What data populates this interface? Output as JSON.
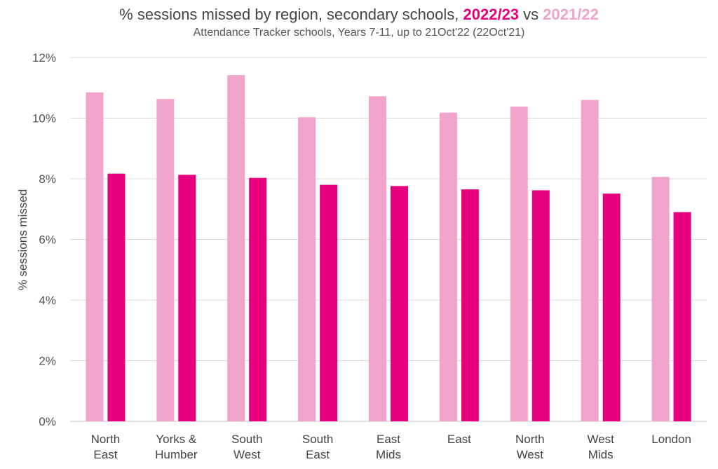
{
  "chart_data": {
    "type": "bar",
    "title_prefix": "% sessions missed by region, secondary schools,",
    "title_series_new": "2022/23",
    "title_vs": "vs",
    "title_series_old": "2021/22",
    "subtitle": "Attendance Tracker schools, Years 7-11, up to 21Oct'22 (22Oct'21)",
    "xlabel": "",
    "ylabel": "% sessions missed",
    "ylim": [
      0,
      12
    ],
    "yticks": [
      0,
      2,
      4,
      6,
      8,
      10,
      12
    ],
    "ytick_labels": [
      "0%",
      "2%",
      "4%",
      "6%",
      "8%",
      "10%",
      "12%"
    ],
    "grid": true,
    "categories": [
      [
        "North",
        "East"
      ],
      [
        "Yorks &",
        "Humber"
      ],
      [
        "South",
        "West"
      ],
      [
        "South",
        "East"
      ],
      [
        "East",
        "Mids"
      ],
      [
        "East"
      ],
      [
        "North",
        "West"
      ],
      [
        "West",
        "Mids"
      ],
      [
        "London"
      ]
    ],
    "series": [
      {
        "name": "2021/22",
        "color": "#f0a3cb",
        "values": [
          10.85,
          10.63,
          11.42,
          10.03,
          10.72,
          10.18,
          10.38,
          10.6,
          8.06
        ]
      },
      {
        "name": "2022/23",
        "color": "#e6007e",
        "values": [
          8.17,
          8.13,
          8.03,
          7.8,
          7.76,
          7.65,
          7.62,
          7.51,
          6.9
        ]
      }
    ],
    "colors": {
      "gridline": "#d9d9d9",
      "axis": "#bfbfbf"
    }
  }
}
